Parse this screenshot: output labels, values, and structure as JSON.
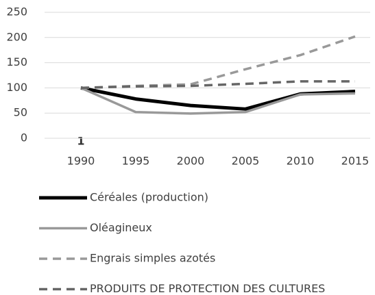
{
  "chart_data": {
    "type": "line",
    "categories": [
      "1990",
      "1995",
      "2000",
      "2005",
      "2010",
      "2015"
    ],
    "annotation": "1",
    "series": [
      {
        "name": "Céréales (production)",
        "color": "#000000",
        "width": 5,
        "dashed": false,
        "values": [
          100,
          78,
          65,
          58,
          88,
          93
        ]
      },
      {
        "name": "Oléagineux",
        "color": "#999999",
        "width": 3.5,
        "dashed": false,
        "values": [
          100,
          52,
          49,
          52,
          87,
          89
        ]
      },
      {
        "name": "Engrais simples azotés",
        "color": "#999999",
        "width": 3.5,
        "dashed": true,
        "values": [
          100,
          104,
          107,
          137,
          165,
          202
        ]
      },
      {
        "name": "PRODUITS DE PROTECTION DES CULTURES",
        "color": "#666666",
        "width": 3.5,
        "dashed": true,
        "values": [
          100,
          103,
          104,
          108,
          113,
          113
        ]
      }
    ],
    "ylim": [
      0,
      250
    ],
    "yticks": [
      0,
      50,
      100,
      150,
      200,
      250
    ],
    "grid": true
  }
}
